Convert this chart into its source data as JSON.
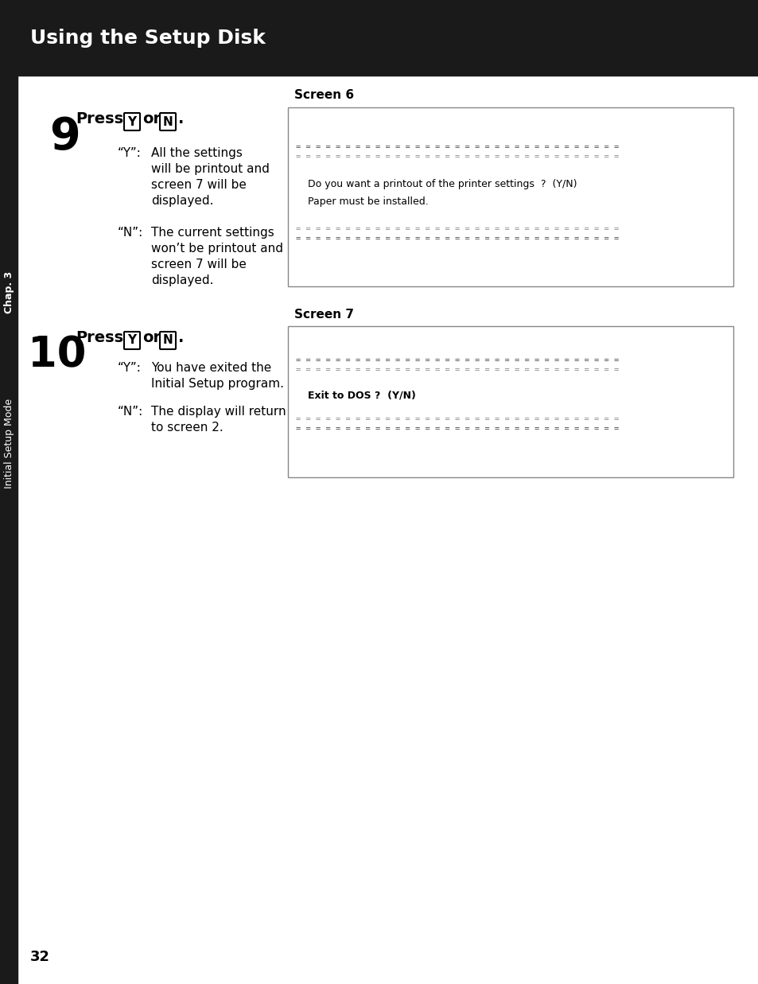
{
  "title_bar_text": "Using the Setup Disk",
  "title_bar_color": "#1a1a1a",
  "title_text_color": "#ffffff",
  "bg_color": "#ffffff",
  "step9_number": "9",
  "step9_press": "Press",
  "step9_y": "Y",
  "step9_or": "or",
  "step9_n": "N",
  "step9_dot": ".",
  "step9_y_label": "“Y”:",
  "step9_y_desc1": "All the settings",
  "step9_y_desc2": "will be printout and",
  "step9_y_desc3": "screen 7 will be",
  "step9_y_desc4": "displayed.",
  "step9_n_label": "“N”:",
  "step9_n_desc1": "The current settings",
  "step9_n_desc2": "won’t be printout and",
  "step9_n_desc3": "screen 7 will be",
  "step9_n_desc4": "displayed.",
  "screen6_label": "Screen 6",
  "screen6_line1": "Do you want a printout of the printer settings  ?  (Y/N)",
  "screen6_line2": "Paper must be installed.",
  "step10_number": "10",
  "step10_press": "Press",
  "step10_y": "Y",
  "step10_or": "or",
  "step10_n": "N",
  "step10_dot": ".",
  "step10_y_label": "“Y”:",
  "step10_y_desc1": "You have exited the",
  "step10_y_desc2": "Initial Setup program.",
  "step10_n_label": "“N”:",
  "step10_n_desc1": "The display will return",
  "step10_n_desc2": "to screen 2.",
  "screen7_label": "Screen 7",
  "screen7_line1": "Exit to DOS ?  (Y/N)",
  "side_label": "Chap. 3",
  "side_label2": "Initial Setup Mode",
  "page_num": "32"
}
